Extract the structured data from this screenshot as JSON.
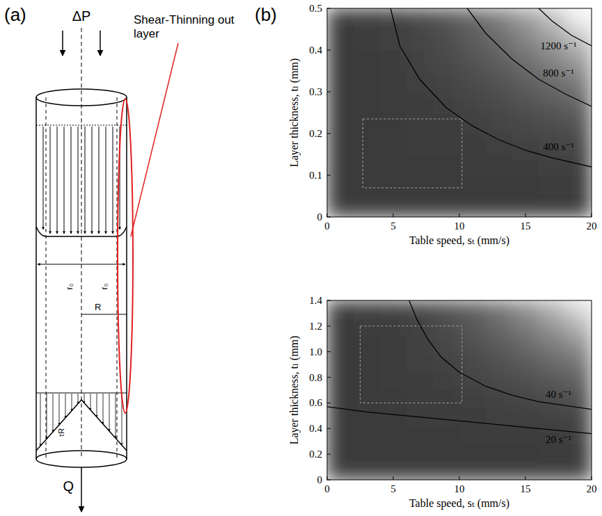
{
  "panel_labels": [
    "(a)",
    "(b)"
  ],
  "diagram": {
    "pressure": "ΔP",
    "flow": "Q",
    "layer_label": "Shear-Thinning out layer",
    "plug_radius_labels": [
      "r₀",
      "r₀"
    ],
    "radius": "R",
    "wall_stress": "τR"
  },
  "chart_data": [
    {
      "type": "heatmap",
      "x_label": "Table speed, sₜ (mm/s)",
      "y_label": "Layer thickness, tₗ (mm)",
      "xlim": [
        0,
        20
      ],
      "ylim": [
        0,
        0.5
      ],
      "xticks": [
        0,
        5,
        10,
        15,
        20
      ],
      "yticks": [
        0,
        0.1,
        0.2,
        0.3,
        0.4,
        0.5
      ],
      "x_bins": [
        0,
        2,
        4,
        6,
        8,
        10,
        12,
        14,
        16,
        18,
        20
      ],
      "y_bins": [
        0,
        0.05,
        0.1,
        0.15,
        0.2,
        0.25,
        0.3,
        0.35,
        0.4,
        0.45,
        0.5
      ],
      "color_range": [
        0,
        1500
      ],
      "cells": [
        [
          4,
          12,
          20,
          28,
          36,
          44,
          52,
          60,
          68,
          76
        ],
        [
          12,
          36,
          60,
          84,
          108,
          132,
          156,
          180,
          204,
          228
        ],
        [
          20,
          60,
          100,
          140,
          180,
          220,
          260,
          300,
          340,
          380
        ],
        [
          28,
          84,
          140,
          196,
          252,
          308,
          364,
          420,
          476,
          532
        ],
        [
          36,
          108,
          180,
          252,
          324,
          396,
          468,
          540,
          612,
          684
        ],
        [
          44,
          132,
          220,
          308,
          396,
          484,
          572,
          660,
          748,
          836
        ],
        [
          52,
          156,
          260,
          364,
          468,
          572,
          676,
          780,
          884,
          988
        ],
        [
          60,
          180,
          300,
          420,
          540,
          660,
          780,
          900,
          1020,
          1140
        ],
        [
          68,
          204,
          340,
          476,
          612,
          748,
          884,
          1020,
          1156,
          1292
        ],
        [
          76,
          228,
          380,
          532,
          684,
          836,
          988,
          1140,
          1292,
          1444
        ]
      ],
      "region": {
        "x": [
          2.7,
          10.2
        ],
        "y": [
          0.07,
          0.235
        ]
      },
      "series": [
        {
          "name": "400 s⁻¹",
          "type": "line",
          "color": "#000000",
          "x": [
            20,
            17,
            15,
            13,
            11,
            9,
            7,
            5.5,
            4.8
          ],
          "values": [
            0.12,
            0.142,
            0.16,
            0.185,
            0.218,
            0.262,
            0.33,
            0.41,
            0.5
          ]
        },
        {
          "name": "800 s⁻¹",
          "type": "line",
          "color": "#000000",
          "x": [
            20,
            18,
            16,
            14,
            12,
            10.6
          ],
          "values": [
            0.265,
            0.295,
            0.33,
            0.378,
            0.44,
            0.5
          ]
        },
        {
          "name": "1200 s⁻¹",
          "type": "line",
          "color": "#000000",
          "x": [
            20,
            18.5,
            17,
            16
          ],
          "values": [
            0.41,
            0.435,
            0.47,
            0.5
          ]
        }
      ]
    },
    {
      "type": "heatmap",
      "x_label": "Table speed, sₜ (mm/s)",
      "y_label": "Layer thickness, tₗ (mm)",
      "xlim": [
        0,
        20
      ],
      "ylim": [
        0,
        1.4
      ],
      "xticks": [
        0,
        5,
        10,
        15,
        20
      ],
      "yticks": [
        0,
        0.2,
        0.4,
        0.6,
        0.8,
        {
          "value": 1,
          "label": "1.0"
        },
        1.2,
        1.4
      ],
      "x_bins": [
        0,
        2,
        4,
        6,
        8,
        10,
        12,
        14,
        16,
        18,
        20
      ],
      "y_bins": [
        0,
        0.14,
        0.28,
        0.42,
        0.56,
        0.7,
        0.84,
        0.98,
        1.12,
        1.26,
        1.4
      ],
      "color_range": [
        0,
        110
      ],
      "cells": [
        [
          0.3,
          0.8,
          1.4,
          2.0,
          2.5,
          3.1,
          3.6,
          4.2,
          4.8,
          5.3
        ],
        [
          0.8,
          2.5,
          4.2,
          5.9,
          7.6,
          9.2,
          10.9,
          12.6,
          14.3,
          16.0
        ],
        [
          1.4,
          4.2,
          7.0,
          9.8,
          12.6,
          15.4,
          18.2,
          21.0,
          23.8,
          26.6
        ],
        [
          2.0,
          5.9,
          9.8,
          13.7,
          17.6,
          21.6,
          25.5,
          29.4,
          33.3,
          37.2
        ],
        [
          2.5,
          7.6,
          12.6,
          17.6,
          22.7,
          27.7,
          32.8,
          37.8,
          42.8,
          47.9
        ],
        [
          3.1,
          9.2,
          15.4,
          21.6,
          27.7,
          33.9,
          40.0,
          46.2,
          52.4,
          58.5
        ],
        [
          3.6,
          10.9,
          18.2,
          25.5,
          32.8,
          40.0,
          47.3,
          54.6,
          61.9,
          69.2
        ],
        [
          4.2,
          12.6,
          21.0,
          29.4,
          37.8,
          46.2,
          54.6,
          63.0,
          71.4,
          79.8
        ],
        [
          4.8,
          14.3,
          23.8,
          33.3,
          42.8,
          52.4,
          61.9,
          71.4,
          80.9,
          90.4
        ],
        [
          5.3,
          16.0,
          26.6,
          37.2,
          47.9,
          58.5,
          69.2,
          79.8,
          90.4,
          101.1
        ]
      ],
      "region": {
        "x": [
          2.5,
          10.2
        ],
        "y": [
          0.6,
          1.2
        ]
      },
      "series": [
        {
          "name": "40 s⁻¹",
          "type": "line",
          "color": "#000000",
          "x": [
            6.2,
            6.8,
            7.6,
            8.6,
            10,
            12,
            14,
            16,
            18,
            20
          ],
          "values": [
            1.4,
            1.25,
            1.1,
            0.96,
            0.84,
            0.73,
            0.66,
            0.61,
            0.58,
            0.55
          ]
        },
        {
          "name": "20 s⁻¹",
          "type": "line",
          "color": "#000000",
          "x": [
            0,
            3,
            6,
            9,
            12,
            15,
            18,
            20
          ],
          "values": [
            0.57,
            0.53,
            0.5,
            0.47,
            0.44,
            0.41,
            0.38,
            0.36
          ]
        }
      ]
    }
  ]
}
